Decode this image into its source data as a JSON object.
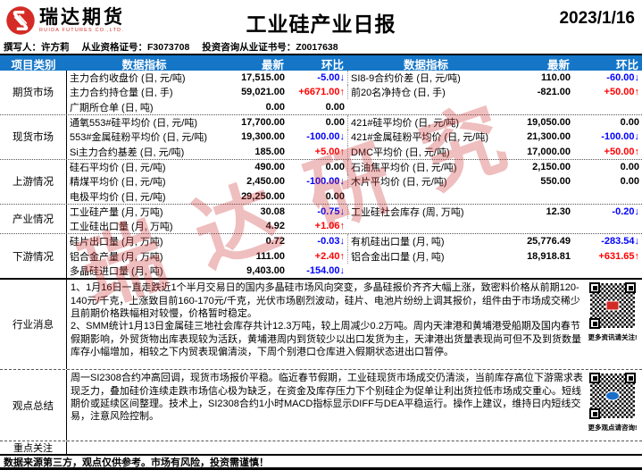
{
  "header": {
    "logo_text": "瑞达期货",
    "logo_sub": "RUIDA FUTURES CO.,LTD.",
    "title": "工业硅产业日报",
    "date": "2023/1/16"
  },
  "meta": {
    "author": "撰写人：许方莉",
    "qualification": "从业资格证号：F3073708",
    "advisor_cert": "投资咨询从业证书号：Z0017638"
  },
  "table": {
    "headers": [
      "项目类别",
      "数据指标",
      "最新",
      "环比",
      "数据指标",
      "最新",
      "环比"
    ],
    "sections": [
      {
        "category": "期货市场",
        "rows": [
          [
            "主力合约收盘价 (日, 元/吨)",
            "17,515.00",
            "-5.00↓",
            "SI8-9合约价差 (日, 元/吨)",
            "110.00",
            "-60.00↓"
          ],
          [
            "主力合约持仓量 (日, 手)",
            "59,021.00",
            "+6671.00↑",
            "前20名净持仓 (日, 手)",
            "-821.00",
            "+50.00↑"
          ],
          [
            "广期所仓单 (日, 吨)",
            "0.00",
            "0.00",
            "",
            "",
            ""
          ]
        ]
      },
      {
        "category": "现货市场",
        "rows": [
          [
            "通氧553#硅平均价 (日, 元/吨)",
            "17,700.00",
            "0.00",
            "421#硅平均价 (日, 元/吨)",
            "19,050.00",
            "0.00"
          ],
          [
            "553#金属硅粉平均价 (日, 元/吨)",
            "19,300.00",
            "-100.00↓",
            "421#金属硅粉平均价 (日, 元/吨)",
            "21,300.00",
            "-100.00↓"
          ],
          [
            "Si主力合约基差 (日, 元/吨)",
            "185.00",
            "+5.00↑",
            "DMC平均价 (日, 元/吨)",
            "17,000.00",
            "+50.00↑"
          ]
        ]
      },
      {
        "category": "上游情况",
        "rows": [
          [
            "硅石平均价 (日, 元/吨)",
            "490.00",
            "0.00",
            "石油焦平均价 (日, 元/吨)",
            "2,150.00",
            "0.00"
          ],
          [
            "精煤平均价 (日, 元/吨)",
            "2,450.00",
            "-100.00↓",
            "木片平均价 (日, 元/吨)",
            "550.00",
            "0.00"
          ],
          [
            "电极平均价 (日, 元/吨)",
            "29,250.00",
            "0.00",
            "",
            "",
            ""
          ]
        ]
      },
      {
        "category": "产业情况",
        "rows": [
          [
            "工业硅产量 (月, 万吨)",
            "30.08",
            "-0.75↓",
            "工业硅社会库存 (周, 万吨)",
            "12.30",
            "-0.20↓"
          ],
          [
            "工业硅出口量 (月, 万吨)",
            "4.92",
            "+1.06↑",
            "",
            "",
            ""
          ]
        ]
      },
      {
        "category": "下游情况",
        "rows": [
          [
            "硅片出口量 (月, 万吨)",
            "0.72",
            "-0.03↓",
            "有机硅出口量 (月, 吨)",
            "25,776.49",
            "-283.54↓"
          ],
          [
            "铝合金产量 (月, 万吨)",
            "111.00",
            "+2.40↑",
            "铝合金出口量 (月, 吨)",
            "18,918.81",
            "+631.65↑"
          ],
          [
            "多晶硅进口量 (月, 吨)",
            "9,403.00",
            "-154.00↓",
            "",
            "",
            ""
          ]
        ]
      }
    ]
  },
  "news": {
    "category": "行业消息",
    "paragraphs": [
      "1、1月16日一直走跌近1个半月交易日的国内多晶硅市场风向突变，多晶硅报价齐齐大幅上涨，致密料价格从前期120-140元/千克，上涨致目前160-170元/千克，光伏市场剧烈波动，硅片、电池片纷纷上调其报价，组件由于市场成交稀少且前期价格跌幅相对较慢，价格暂时稳定。",
      "2、SMM统计1月13日金属硅三地社会库存共计12.3万吨，较上周减少0.2万吨。周内天津港和黄埔港受船期及国内春节假期影响，外贸货物出库表现较为活跃，黄埔港周内到货较少以出口发货为主，天津港出货量表现尚可但不及到货数量库存小幅增加，相较之下内贸表现偏清淡，下周个别港口仓库进入假期状态进出口暂停。"
    ],
    "qr_caption": "更多资讯请关注!"
  },
  "summary": {
    "category": "观点总结",
    "text": "周一SI2308合约冲高回调，现货市场报价平稳。临近春节假期，工业硅现货市场成交仍清淡，当前库存高位下游需求表现乏力，叠加硅价连续走跌市场信心极为缺乏，在资金及库存压力下个别硅企为促单让利出货拉低市场成交重心。短线期价或延续区间整理。技术上，SI2308合约1小时MACD指标显示DIFF与DEA平稳运行。操作上建议，维持日内短线交易，注意风险控制。",
    "qr_caption": "更多观点请咨询!"
  },
  "focus": {
    "category": "重点关注",
    "text": ""
  },
  "footer": {
    "disclaimer": "数据来源第三方，观点仅供参考。市场有风险，投资需谨慎！"
  },
  "watermark": {
    "text": "瑞达研究"
  },
  "colors": {
    "header_bg": "#1576C8",
    "up": "#FF0000",
    "down": "#0000FF",
    "brand": "#D42B26"
  }
}
